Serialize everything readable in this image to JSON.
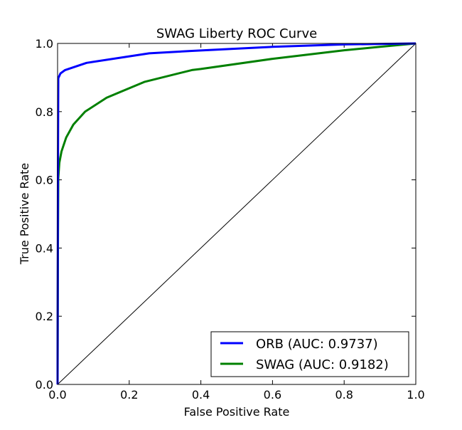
{
  "chart_data": {
    "type": "line",
    "title": "SWAG Liberty ROC Curve",
    "xlabel": "False Positive Rate",
    "ylabel": "True Positive Rate",
    "xlim": [
      0,
      1
    ],
    "ylim": [
      0,
      1
    ],
    "xticks": [
      "0.0",
      "0.2",
      "0.4",
      "0.6",
      "0.8",
      "1.0"
    ],
    "yticks": [
      "0.0",
      "0.2",
      "0.4",
      "0.6",
      "0.8",
      "1.0"
    ],
    "grid": false,
    "legend_position": "bottom-right",
    "series": [
      {
        "name": "ORB (AUC: 0.9737)",
        "color": "#0000ff",
        "x": [
          0,
          0.001,
          0.002,
          0.008,
          0.021,
          0.081,
          0.256,
          0.375,
          0.6,
          0.8,
          1.0
        ],
        "y": [
          0,
          0.6,
          0.898,
          0.912,
          0.922,
          0.943,
          0.971,
          0.978,
          0.99,
          0.997,
          1.0
        ]
      },
      {
        "name": "SWAG (AUC: 0.9182)",
        "color": "#008000",
        "x": [
          0,
          0.001,
          0.002,
          0.005,
          0.011,
          0.024,
          0.044,
          0.077,
          0.137,
          0.242,
          0.375,
          0.4,
          0.6,
          0.8,
          0.9,
          1.0
        ],
        "y": [
          0,
          0.4,
          0.605,
          0.65,
          0.683,
          0.724,
          0.762,
          0.8,
          0.841,
          0.887,
          0.922,
          0.925,
          0.955,
          0.98,
          0.99,
          1.0
        ]
      },
      {
        "name": "",
        "color": "#000000",
        "x": [
          0,
          1
        ],
        "y": [
          0,
          1
        ]
      }
    ]
  }
}
